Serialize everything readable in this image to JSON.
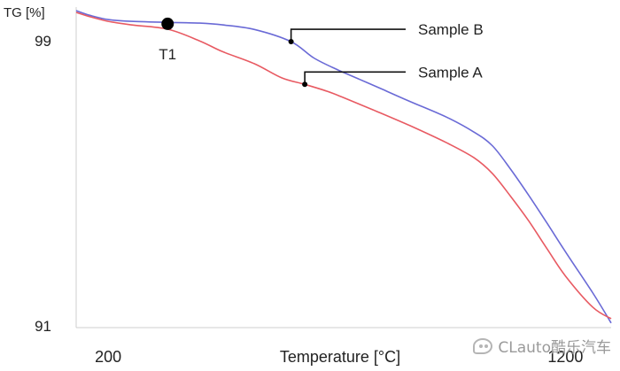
{
  "chart_data": {
    "type": "line",
    "ylabel": "TG [%]",
    "xlabel": "Temperature [°C]",
    "xlim": [
      130,
      1300
    ],
    "ylim": [
      90.95,
      99.95
    ],
    "x_ticks": [
      {
        "value": 200,
        "label": "200"
      },
      {
        "value": 1200,
        "label": "1200"
      }
    ],
    "y_ticks": [
      {
        "value": 99,
        "label": "99"
      },
      {
        "value": 91,
        "label": "91"
      }
    ],
    "grid": false,
    "legend": "none",
    "series": [
      {
        "name": "Sample B",
        "color": "#6a6ad6",
        "x": [
          130,
          160,
          200,
          250,
          330,
          400,
          450,
          520,
          600,
          650,
          700,
          750,
          800,
          860,
          940,
          1000,
          1040,
          1080,
          1120,
          1160,
          1200,
          1260,
          1300
        ],
        "y": [
          99.85,
          99.72,
          99.6,
          99.55,
          99.52,
          99.5,
          99.45,
          99.32,
          98.98,
          98.52,
          98.2,
          97.92,
          97.64,
          97.3,
          96.86,
          96.44,
          96.06,
          95.4,
          94.66,
          93.88,
          93.08,
          91.92,
          91.08
        ]
      },
      {
        "name": "Sample A",
        "color": "#e85a62",
        "x": [
          130,
          160,
          200,
          250,
          330,
          400,
          450,
          520,
          580,
          630,
          680,
          720,
          780,
          860,
          940,
          1000,
          1040,
          1080,
          1120,
          1160,
          1200,
          1260,
          1300
        ],
        "y": [
          99.8,
          99.68,
          99.55,
          99.45,
          99.33,
          99.0,
          98.7,
          98.36,
          97.96,
          97.78,
          97.58,
          97.38,
          97.06,
          96.62,
          96.14,
          95.72,
          95.28,
          94.64,
          93.94,
          93.16,
          92.4,
          91.52,
          91.2
        ]
      }
    ],
    "annotations": [
      {
        "label": "T1",
        "x": 330,
        "y": 99.48,
        "marker": "large-dot"
      },
      {
        "label": "Sample B",
        "x": 600,
        "y": 98.98,
        "marker": "small-dot",
        "series": "Sample B"
      },
      {
        "label": "Sample A",
        "x": 630,
        "y": 97.78,
        "marker": "small-dot",
        "series": "Sample A"
      }
    ]
  },
  "watermark": {
    "text": "CLauto酷乐汽车",
    "icon": "wechat-icon"
  }
}
